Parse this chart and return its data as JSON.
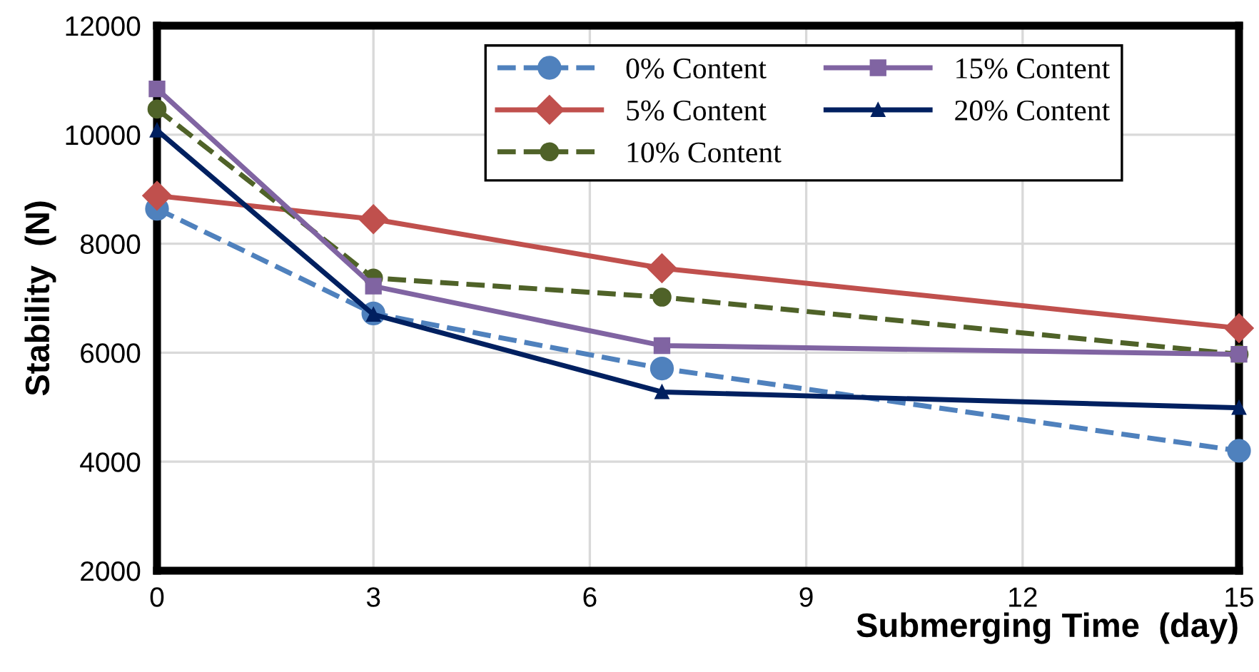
{
  "chart_data": {
    "type": "line",
    "xlabel": "Submerging Time  (day)",
    "ylabel": "Stability  (N)",
    "x": [
      0,
      3,
      7,
      15
    ],
    "series": [
      {
        "name": "0% Content",
        "color": "#4f81bd",
        "marker": "circle",
        "line_style": "dashed",
        "values": [
          8640,
          6720,
          5710,
          4200
        ]
      },
      {
        "name": "5% Content",
        "color": "#c0504d",
        "marker": "diamond",
        "line_style": "solid",
        "values": [
          8880,
          8450,
          7550,
          6450
        ]
      },
      {
        "name": "10% Content",
        "color": "#4f6228",
        "marker": "circle",
        "line_style": "dashed",
        "values": [
          10470,
          7370,
          7020,
          5970
        ]
      },
      {
        "name": "15% Content",
        "color": "#8064a2",
        "marker": "square",
        "line_style": "solid",
        "values": [
          10840,
          7220,
          6130,
          5970
        ]
      },
      {
        "name": "20% Content",
        "color": "#002060",
        "marker": "triangle",
        "line_style": "solid",
        "values": [
          10080,
          6700,
          5280,
          4990
        ]
      }
    ],
    "xlim": [
      0,
      15
    ],
    "xticks": [
      0,
      3,
      6,
      9,
      12,
      15
    ],
    "ylim": [
      2000,
      12000
    ],
    "yticks": [
      2000,
      4000,
      6000,
      8000,
      10000,
      12000
    ],
    "grid": true,
    "legend": "top right"
  }
}
